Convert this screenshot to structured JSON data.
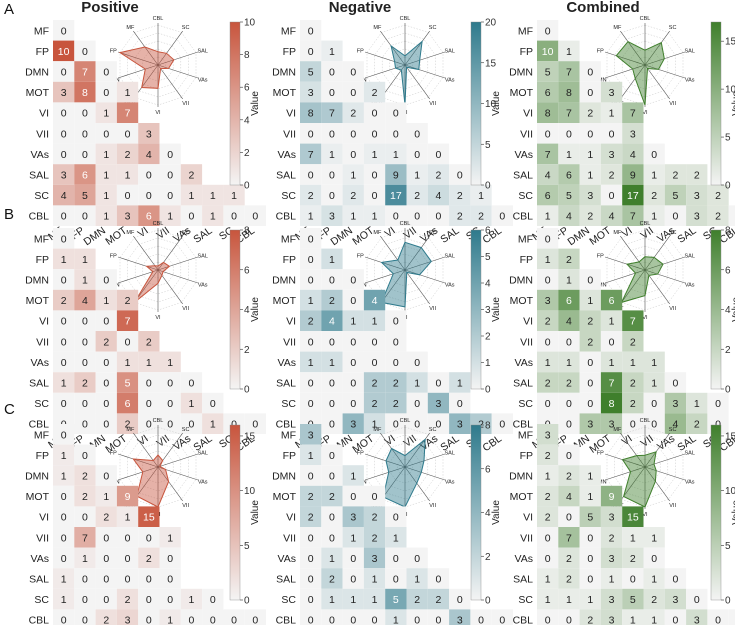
{
  "regions": [
    "MF",
    "FP",
    "DMN",
    "MOT",
    "VI",
    "VII",
    "VAs",
    "SAL",
    "SC",
    "CBL"
  ],
  "colors": {
    "positive": {
      "low": "#f4f4f4",
      "high": "#c8553d"
    },
    "negative": {
      "low": "#f4f4f4",
      "high": "#2e7a8c"
    },
    "combined": {
      "low": "#f4f4f4",
      "high": "#3f7f2c"
    }
  },
  "colorbar_label": "Value",
  "chart_data": [
    {
      "type": "heatmap",
      "row_label": "A",
      "title": "Positive",
      "scheme": "positive",
      "vmax": 10,
      "ticks": [
        0,
        2,
        4,
        6,
        8,
        10
      ],
      "matrix": [
        [
          0
        ],
        [
          10,
          0
        ],
        [
          0,
          7,
          0
        ],
        [
          3,
          8,
          0,
          1
        ],
        [
          0,
          0,
          1,
          7
        ],
        [
          0,
          0,
          0,
          0,
          3
        ],
        [
          0,
          0,
          1,
          2,
          4,
          0
        ],
        [
          3,
          6,
          1,
          1,
          0,
          0,
          2
        ],
        [
          4,
          5,
          1,
          0,
          0,
          0,
          1,
          1,
          1
        ],
        [
          0,
          0,
          1,
          3,
          6,
          1,
          0,
          1,
          0,
          0
        ]
      ],
      "radar_labels": [
        "CBL",
        "SC",
        "SAL",
        "VAs",
        "VII",
        "VI",
        "MOT",
        "DMN",
        "FP",
        "MF"
      ]
    },
    {
      "type": "heatmap",
      "row_label": "A",
      "title": "Negative",
      "scheme": "negative",
      "vmax": 20,
      "ticks": [
        0,
        5,
        10,
        15,
        20
      ],
      "matrix": [
        [
          0
        ],
        [
          0,
          1
        ],
        [
          5,
          0,
          0
        ],
        [
          3,
          0,
          0,
          2
        ],
        [
          8,
          7,
          2,
          0,
          0
        ],
        [
          0,
          0,
          0,
          0,
          0,
          0
        ],
        [
          7,
          1,
          0,
          1,
          1,
          0,
          0
        ],
        [
          0,
          0,
          1,
          0,
          9,
          1,
          2,
          0
        ],
        [
          2,
          0,
          2,
          0,
          17,
          2,
          4,
          2,
          1
        ],
        [
          1,
          3,
          1,
          1,
          0,
          0,
          0,
          2,
          2,
          0
        ]
      ],
      "radar_labels": [
        "CBL",
        "SC",
        "SAL",
        "VAs",
        "VII",
        "VI",
        "MOT",
        "DMN",
        "FP",
        "MF"
      ]
    },
    {
      "type": "heatmap",
      "row_label": "A",
      "title": "Combined",
      "scheme": "combined",
      "vmax": 17,
      "ticks": [
        0,
        5,
        10,
        15
      ],
      "matrix": [
        [
          0
        ],
        [
          10,
          1
        ],
        [
          5,
          7,
          0
        ],
        [
          6,
          8,
          0,
          3
        ],
        [
          8,
          7,
          2,
          1,
          7
        ],
        [
          0,
          0,
          0,
          0,
          3
        ],
        [
          7,
          1,
          1,
          3,
          4,
          0
        ],
        [
          4,
          6,
          1,
          2,
          9,
          1,
          2,
          2
        ],
        [
          6,
          5,
          3,
          0,
          17,
          2,
          5,
          3,
          2
        ],
        [
          1,
          4,
          2,
          4,
          7,
          1,
          0,
          3,
          2,
          0
        ]
      ],
      "radar_labels": [
        "CBL",
        "SC",
        "SAL",
        "VAs",
        "VII",
        "VI",
        "MOT",
        "DMN",
        "FP",
        "MF"
      ]
    },
    {
      "type": "heatmap",
      "row_label": "B",
      "title": "",
      "scheme": "positive",
      "vmax": 8,
      "ticks": [
        0,
        2,
        4,
        6,
        8
      ],
      "matrix": [
        [
          0
        ],
        [
          1,
          1
        ],
        [
          0,
          1,
          0
        ],
        [
          2,
          4,
          1,
          2
        ],
        [
          0,
          0,
          0,
          7
        ],
        [
          0,
          0,
          2,
          0,
          2
        ],
        [
          0,
          0,
          0,
          1,
          1,
          1
        ],
        [
          1,
          2,
          0,
          5,
          0,
          0,
          0
        ],
        [
          0,
          0,
          0,
          6,
          0,
          0,
          1,
          0
        ],
        [
          0,
          0,
          0,
          2,
          0,
          0,
          0,
          1,
          0,
          0
        ]
      ],
      "radar_labels": [
        "CBL",
        "SC",
        "SAL",
        "VAs",
        "VII",
        "VI",
        "MOT",
        "DMN",
        "FP",
        "MF"
      ]
    },
    {
      "type": "heatmap",
      "row_label": "B",
      "title": "",
      "scheme": "negative",
      "vmax": 6,
      "ticks": [
        0,
        1,
        2,
        3,
        4,
        5,
        6
      ],
      "matrix": [
        [
          0
        ],
        [
          0,
          1
        ],
        [
          0,
          0,
          0
        ],
        [
          1,
          2,
          0,
          4
        ],
        [
          2,
          4,
          1,
          1,
          0
        ],
        [
          0,
          0,
          0,
          0,
          0
        ],
        [
          1,
          1,
          0,
          0,
          0,
          0
        ],
        [
          0,
          0,
          0,
          2,
          2,
          1,
          0,
          1
        ],
        [
          0,
          0,
          0,
          2,
          2,
          0,
          3,
          0
        ],
        [
          0,
          0,
          3,
          1,
          0,
          0,
          0,
          3,
          2,
          0
        ]
      ],
      "radar_labels": [
        "CBL",
        "SC",
        "SAL",
        "VAs",
        "VII",
        "VI",
        "MOT",
        "DMN",
        "FP",
        "MF"
      ]
    },
    {
      "type": "heatmap",
      "row_label": "B",
      "title": "",
      "scheme": "combined",
      "vmax": 8,
      "ticks": [
        0,
        2,
        4,
        6,
        8
      ],
      "matrix": [
        [
          0
        ],
        [
          1,
          2
        ],
        [
          0,
          1,
          0
        ],
        [
          3,
          6,
          1,
          6
        ],
        [
          2,
          4,
          2,
          1,
          7
        ],
        [
          0,
          0,
          2,
          0,
          2
        ],
        [
          1,
          1,
          0,
          1,
          1,
          1
        ],
        [
          2,
          2,
          0,
          7,
          2,
          1,
          0
        ],
        [
          0,
          0,
          0,
          8,
          2,
          0,
          3,
          1,
          0
        ],
        [
          0,
          0,
          3,
          3,
          0,
          0,
          4,
          2,
          0
        ]
      ],
      "radar_labels": [
        "CBL",
        "SC",
        "SAL",
        "VAs",
        "VII",
        "VI",
        "MOT",
        "DMN",
        "FP",
        "MF"
      ]
    },
    {
      "type": "heatmap",
      "row_label": "C",
      "title": "",
      "scheme": "positive",
      "vmax": 16,
      "ticks": [
        0,
        5,
        10,
        15
      ],
      "matrix": [
        [
          0
        ],
        [
          1,
          0
        ],
        [
          1,
          2,
          0
        ],
        [
          0,
          2,
          1,
          9
        ],
        [
          0,
          0,
          2,
          1,
          15
        ],
        [
          0,
          7,
          0,
          0,
          0,
          1
        ],
        [
          0,
          1,
          0,
          0,
          2,
          0
        ],
        [
          1,
          0,
          0,
          0,
          0,
          0
        ],
        [
          1,
          0,
          0,
          2,
          0,
          0,
          1,
          0
        ],
        [
          0,
          0,
          2,
          3,
          0,
          1,
          0,
          0,
          0,
          0
        ]
      ],
      "radar_labels": [
        "CBL",
        "SC",
        "SAL",
        "VAs",
        "VII",
        "VI",
        "MOT",
        "DMN",
        "FP",
        "MF"
      ]
    },
    {
      "type": "heatmap",
      "row_label": "C",
      "title": "",
      "scheme": "negative",
      "vmax": 8,
      "ticks": [
        0,
        2,
        4,
        6,
        8
      ],
      "matrix": [
        [
          3
        ],
        [
          1,
          0
        ],
        [
          0,
          0,
          1
        ],
        [
          2,
          2,
          0,
          0
        ],
        [
          2,
          0,
          3,
          2,
          0
        ],
        [
          0,
          0,
          1,
          2,
          1
        ],
        [
          0,
          1,
          0,
          3,
          0,
          0
        ],
        [
          0,
          2,
          0,
          1,
          0,
          1,
          0
        ],
        [
          0,
          1,
          1,
          1,
          5,
          2,
          2,
          0
        ],
        [
          0,
          0,
          0,
          0,
          1,
          0,
          0,
          3,
          0,
          0
        ]
      ],
      "radar_labels": [
        "CBL",
        "SC",
        "SAL",
        "VAs",
        "VII",
        "VI",
        "MOT",
        "DMN",
        "FP",
        "MF"
      ]
    },
    {
      "type": "heatmap",
      "row_label": "C",
      "title": "",
      "scheme": "combined",
      "vmax": 16,
      "ticks": [
        0,
        5,
        10,
        15
      ],
      "matrix": [
        [
          3
        ],
        [
          2,
          0
        ],
        [
          1,
          2,
          1
        ],
        [
          2,
          4,
          1,
          9
        ],
        [
          2,
          0,
          5,
          3,
          15
        ],
        [
          0,
          7,
          0,
          2,
          1,
          1
        ],
        [
          0,
          2,
          0,
          3,
          2,
          0
        ],
        [
          1,
          2,
          0,
          1,
          0,
          1,
          0
        ],
        [
          1,
          1,
          1,
          3,
          5,
          2,
          3,
          0
        ],
        [
          0,
          0,
          2,
          3,
          1,
          1,
          0,
          3,
          0,
          0
        ]
      ],
      "radar_labels": [
        "CBL",
        "SC",
        "SAL",
        "VAs",
        "VII",
        "VI",
        "MOT",
        "DMN",
        "FP",
        "MF"
      ]
    }
  ]
}
